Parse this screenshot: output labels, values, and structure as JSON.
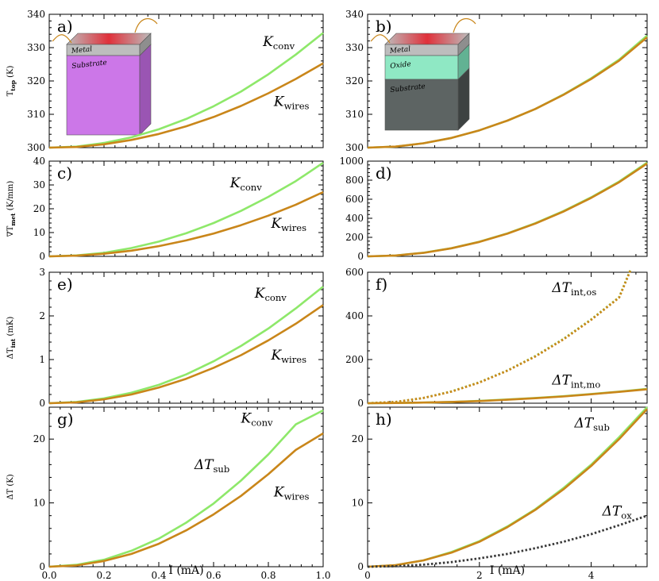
{
  "chart_data": [
    {
      "panel": "a)",
      "type": "line",
      "ylabel": "T_top (K)",
      "xlabel": "",
      "xlim": [
        0,
        1.0
      ],
      "ylim": [
        300,
        340
      ],
      "yticks": [
        300,
        310,
        320,
        330,
        340
      ],
      "xticks": [
        0.0,
        0.2,
        0.4,
        0.6,
        0.8,
        1.0
      ],
      "show_xtick_labels": false,
      "inset": {
        "kind": "bilayer",
        "layers": [
          "Metal",
          "Substrate"
        ]
      },
      "series": [
        {
          "name": "K_conv",
          "color": "#8ee86a",
          "style": "solid",
          "x": [
            0,
            0.1,
            0.2,
            0.3,
            0.4,
            0.5,
            0.6,
            0.7,
            0.8,
            0.9,
            1.0
          ],
          "y": [
            300,
            300.3,
            301.4,
            303.1,
            305.5,
            308.6,
            312.4,
            316.8,
            322.0,
            327.9,
            334.4
          ]
        },
        {
          "name": "K_wires",
          "color": "#c9861a",
          "style": "solid",
          "x": [
            0,
            0.1,
            0.2,
            0.3,
            0.4,
            0.5,
            0.6,
            0.7,
            0.8,
            0.9,
            1.0
          ],
          "y": [
            300,
            300.2,
            301.0,
            302.3,
            304.1,
            306.4,
            309.2,
            312.5,
            316.3,
            320.6,
            325.3
          ]
        }
      ],
      "annotations": [
        {
          "text": "K",
          "sub": "conv",
          "series": "K_conv"
        },
        {
          "text": "K",
          "sub": "wires",
          "series": "K_wires"
        }
      ]
    },
    {
      "panel": "b)",
      "type": "line",
      "ylabel": "",
      "xlabel": "",
      "xlim": [
        0,
        5
      ],
      "ylim": [
        300,
        340
      ],
      "yticks": [
        300,
        310,
        320,
        330,
        340
      ],
      "xticks": [
        0,
        2,
        4
      ],
      "show_xtick_labels": false,
      "inset": {
        "kind": "trilayer",
        "layers": [
          "Metal",
          "Oxide",
          "Substrate"
        ]
      },
      "series": [
        {
          "name": "K_conv",
          "color": "#8ee86a",
          "style": "solid",
          "x": [
            0,
            0.5,
            1,
            1.5,
            2,
            2.5,
            3,
            3.5,
            4,
            4.5,
            5
          ],
          "y": [
            300,
            300.3,
            301.3,
            302.9,
            305.2,
            308.1,
            311.6,
            315.9,
            320.8,
            326.4,
            333.6
          ]
        },
        {
          "name": "K_wires",
          "color": "#c9861a",
          "style": "solid",
          "x": [
            0,
            0.5,
            1,
            1.5,
            2,
            2.5,
            3,
            3.5,
            4,
            4.5,
            5
          ],
          "y": [
            300,
            300.3,
            301.3,
            302.9,
            305.2,
            308.1,
            311.6,
            315.8,
            320.6,
            326.1,
            333.1
          ]
        }
      ],
      "annotations": []
    },
    {
      "panel": "c)",
      "type": "line",
      "ylabel": "∇T_met (K/mm)",
      "xlabel": "",
      "xlim": [
        0,
        1.0
      ],
      "ylim": [
        0,
        40
      ],
      "yticks": [
        0,
        10,
        20,
        30,
        40
      ],
      "xticks": [
        0.0,
        0.2,
        0.4,
        0.6,
        0.8,
        1.0
      ],
      "show_xtick_labels": false,
      "series": [
        {
          "name": "K_conv",
          "color": "#8ee86a",
          "style": "solid",
          "x": [
            0,
            0.1,
            0.2,
            0.3,
            0.4,
            0.5,
            0.6,
            0.7,
            0.8,
            0.9,
            1.0
          ],
          "y": [
            0,
            0.4,
            1.5,
            3.5,
            6.2,
            9.7,
            14.0,
            19.1,
            25.0,
            31.6,
            39.3
          ]
        },
        {
          "name": "K_wires",
          "color": "#c9861a",
          "style": "solid",
          "x": [
            0,
            0.1,
            0.2,
            0.3,
            0.4,
            0.5,
            0.6,
            0.7,
            0.8,
            0.9,
            1.0
          ],
          "y": [
            0,
            0.3,
            1.1,
            2.4,
            4.3,
            6.7,
            9.6,
            13.1,
            17.1,
            21.7,
            27.0
          ]
        }
      ],
      "annotations": [
        {
          "text": "K",
          "sub": "conv",
          "series": "K_conv"
        },
        {
          "text": "K",
          "sub": "wires",
          "series": "K_wires"
        }
      ]
    },
    {
      "panel": "d)",
      "type": "line",
      "ylabel": "",
      "xlabel": "",
      "xlim": [
        0,
        5
      ],
      "ylim": [
        0,
        1000
      ],
      "yticks": [
        0,
        200,
        400,
        600,
        800,
        1000
      ],
      "xticks": [
        0,
        2,
        4
      ],
      "show_xtick_labels": false,
      "series": [
        {
          "name": "K_conv",
          "color": "#8ee86a",
          "style": "solid",
          "x": [
            0,
            0.5,
            1,
            1.5,
            2,
            2.5,
            3,
            3.5,
            4,
            4.5,
            5
          ],
          "y": [
            0,
            9,
            38,
            86,
            154,
            241,
            348,
            474,
            620,
            786,
            985
          ]
        },
        {
          "name": "K_wires",
          "color": "#c9861a",
          "style": "solid",
          "x": [
            0,
            0.5,
            1,
            1.5,
            2,
            2.5,
            3,
            3.5,
            4,
            4.5,
            5
          ],
          "y": [
            0,
            9,
            37,
            85,
            152,
            238,
            344,
            469,
            614,
            778,
            975
          ]
        }
      ],
      "annotations": []
    },
    {
      "panel": "e)",
      "type": "line",
      "ylabel": "ΔT_int (mK)",
      "xlabel": "",
      "xlim": [
        0,
        1.0
      ],
      "ylim": [
        0,
        3
      ],
      "yticks": [
        0,
        1,
        2,
        3
      ],
      "xticks": [
        0.0,
        0.2,
        0.4,
        0.6,
        0.8,
        1.0
      ],
      "show_xtick_labels": false,
      "series": [
        {
          "name": "K_conv",
          "color": "#8ee86a",
          "style": "solid",
          "x": [
            0,
            0.1,
            0.2,
            0.3,
            0.4,
            0.5,
            0.6,
            0.7,
            0.8,
            0.9,
            1.0
          ],
          "y": [
            0,
            0.03,
            0.11,
            0.24,
            0.42,
            0.66,
            0.96,
            1.31,
            1.71,
            2.17,
            2.67
          ]
        },
        {
          "name": "K_wires",
          "color": "#c9861a",
          "style": "solid",
          "x": [
            0,
            0.1,
            0.2,
            0.3,
            0.4,
            0.5,
            0.6,
            0.7,
            0.8,
            0.9,
            1.0
          ],
          "y": [
            0,
            0.02,
            0.09,
            0.2,
            0.36,
            0.56,
            0.81,
            1.1,
            1.44,
            1.82,
            2.25
          ]
        }
      ],
      "annotations": [
        {
          "text": "K",
          "sub": "conv",
          "series": "K_conv"
        },
        {
          "text": "K",
          "sub": "wires",
          "series": "K_wires"
        }
      ]
    },
    {
      "panel": "f)",
      "type": "line",
      "ylabel": "",
      "xlabel": "",
      "xlim": [
        0,
        5
      ],
      "ylim": [
        0,
        600
      ],
      "yticks": [
        0,
        200,
        400,
        600
      ],
      "xticks": [
        0,
        2,
        4
      ],
      "show_xtick_labels": false,
      "series": [
        {
          "name": "ΔT_int,os (K_conv)",
          "color": "#8ee86a",
          "style": "dotted",
          "x": [
            0,
            0.5,
            1,
            1.5,
            2,
            2.5,
            3,
            3.5,
            4,
            4.5,
            4.7
          ],
          "y": [
            0,
            6,
            24,
            54,
            96,
            150,
            216,
            294,
            384,
            486,
            610
          ]
        },
        {
          "name": "ΔT_int,os (K_wires)",
          "color": "#c9861a",
          "style": "dotted",
          "x": [
            0,
            0.5,
            1,
            1.5,
            2,
            2.5,
            3,
            3.5,
            4,
            4.5,
            4.7
          ],
          "y": [
            0,
            6,
            24,
            53,
            95,
            149,
            214,
            292,
            382,
            484,
            608
          ]
        },
        {
          "name": "ΔT_int,mo (K_conv)",
          "color": "#8ee86a",
          "style": "solid",
          "x": [
            0,
            0.5,
            1,
            1.5,
            2,
            2.5,
            3,
            3.5,
            4,
            4.5,
            5
          ],
          "y": [
            0,
            1,
            3,
            6,
            11,
            17,
            24,
            32,
            42,
            53,
            66
          ]
        },
        {
          "name": "ΔT_int,mo (K_wires)",
          "color": "#c9861a",
          "style": "solid",
          "x": [
            0,
            0.5,
            1,
            1.5,
            2,
            2.5,
            3,
            3.5,
            4,
            4.5,
            5
          ],
          "y": [
            0,
            1,
            3,
            6,
            10,
            16,
            23,
            31,
            41,
            52,
            64
          ]
        }
      ],
      "annotations": [
        {
          "text": "ΔT",
          "sub": "int,os",
          "series": "ΔT_int,os (K_conv)"
        },
        {
          "text": "ΔT",
          "sub": "int,mo",
          "series": "ΔT_int,mo (K_conv)"
        }
      ]
    },
    {
      "panel": "g)",
      "type": "line",
      "ylabel": "ΔT (K)",
      "xlabel": "I (mA)",
      "xlim": [
        0,
        1.0
      ],
      "ylim": [
        0,
        25
      ],
      "yticks": [
        0,
        10,
        20
      ],
      "xticks": [
        0.0,
        0.2,
        0.4,
        0.6,
        0.8,
        1.0
      ],
      "show_xtick_labels": true,
      "series": [
        {
          "name": "K_conv",
          "color": "#8ee86a",
          "style": "solid",
          "x": [
            0,
            0.1,
            0.2,
            0.3,
            0.4,
            0.5,
            0.6,
            0.7,
            0.8,
            0.9,
            1.0
          ],
          "y": [
            0,
            0.3,
            1.1,
            2.5,
            4.4,
            6.9,
            9.9,
            13.5,
            17.6,
            22.3,
            24.5
          ]
        },
        {
          "name": "K_wires",
          "color": "#c9861a",
          "style": "solid",
          "x": [
            0,
            0.1,
            0.2,
            0.3,
            0.4,
            0.5,
            0.6,
            0.7,
            0.8,
            0.9,
            1.0
          ],
          "y": [
            0,
            0.2,
            0.9,
            2.0,
            3.6,
            5.7,
            8.2,
            11.1,
            14.5,
            18.3,
            20.9
          ]
        }
      ],
      "annotations": [
        {
          "text": "K",
          "sub": "conv",
          "series": "K_conv"
        },
        {
          "text": "ΔT",
          "sub": "sub",
          "series": "K_conv"
        },
        {
          "text": "K",
          "sub": "wires",
          "series": "K_wires"
        }
      ]
    },
    {
      "panel": "h)",
      "type": "line",
      "ylabel": "",
      "xlabel": "I (mA)",
      "xlim": [
        0,
        5
      ],
      "ylim": [
        0,
        25
      ],
      "yticks": [
        0,
        10,
        20
      ],
      "xticks": [
        0,
        2,
        4
      ],
      "show_xtick_labels": true,
      "series": [
        {
          "name": "ΔT_sub (K_conv)",
          "color": "#8ee86a",
          "style": "solid",
          "x": [
            0,
            0.5,
            1,
            1.5,
            2,
            2.5,
            3,
            3.5,
            4,
            4.5,
            5
          ],
          "y": [
            0,
            0.25,
            1.0,
            2.3,
            4.0,
            6.3,
            9.0,
            12.3,
            16.0,
            20.3,
            25.0
          ]
        },
        {
          "name": "ΔT_sub (K_wires)",
          "color": "#c9861a",
          "style": "solid",
          "x": [
            0,
            0.5,
            1,
            1.5,
            2,
            2.5,
            3,
            3.5,
            4,
            4.5,
            5
          ],
          "y": [
            0,
            0.25,
            1.0,
            2.2,
            3.9,
            6.2,
            8.9,
            12.1,
            15.8,
            20.0,
            24.7
          ]
        },
        {
          "name": "ΔT_ox",
          "color": "#3a3a3a",
          "style": "dotted",
          "x": [
            0,
            0.5,
            1,
            1.5,
            2,
            2.5,
            3,
            3.5,
            4,
            4.5,
            5
          ],
          "y": [
            0,
            0.08,
            0.32,
            0.72,
            1.3,
            2.0,
            2.9,
            3.9,
            5.1,
            6.5,
            8.0
          ]
        }
      ],
      "annotations": [
        {
          "text": "ΔT",
          "sub": "sub",
          "series": "ΔT_sub (K_conv)"
        },
        {
          "text": "ΔT",
          "sub": "ox",
          "series": "ΔT_ox"
        }
      ]
    }
  ]
}
